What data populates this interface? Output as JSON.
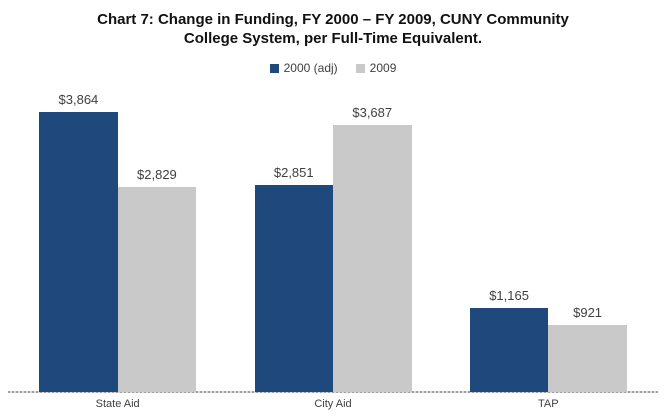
{
  "title": {
    "line1": "Chart 7: Change in Funding, FY 2000 – FY 2009, CUNY Community",
    "line2": "College System, per Full-Time Equivalent."
  },
  "colors": {
    "series_2000": "#1F497D",
    "series_2009": "#C9C9C9",
    "label_text": "#404040",
    "axis_line": "#9E9E9E"
  },
  "chart_data": {
    "type": "bar",
    "title": "Chart 7: Change in Funding, FY 2000 – FY 2009, CUNY Community College System, per Full-Time Equivalent.",
    "categories": [
      "State Aid",
      "City Aid",
      "TAP"
    ],
    "series": [
      {
        "name": "2000 (adj)",
        "color": "#1F497D",
        "values": [
          3864,
          2851,
          1165
        ],
        "labels": [
          "$3,864",
          "$2,851",
          "$1,165"
        ]
      },
      {
        "name": "2009",
        "color": "#C9C9C9",
        "values": [
          2829,
          3687,
          921
        ],
        "labels": [
          "$2,829",
          "$3,687",
          "$921"
        ]
      }
    ],
    "xlabel": "",
    "ylabel": "",
    "ylim": [
      0,
      4000
    ],
    "grid": false,
    "y_axis_visible": false,
    "legend_position": "top",
    "data_labels": true
  }
}
